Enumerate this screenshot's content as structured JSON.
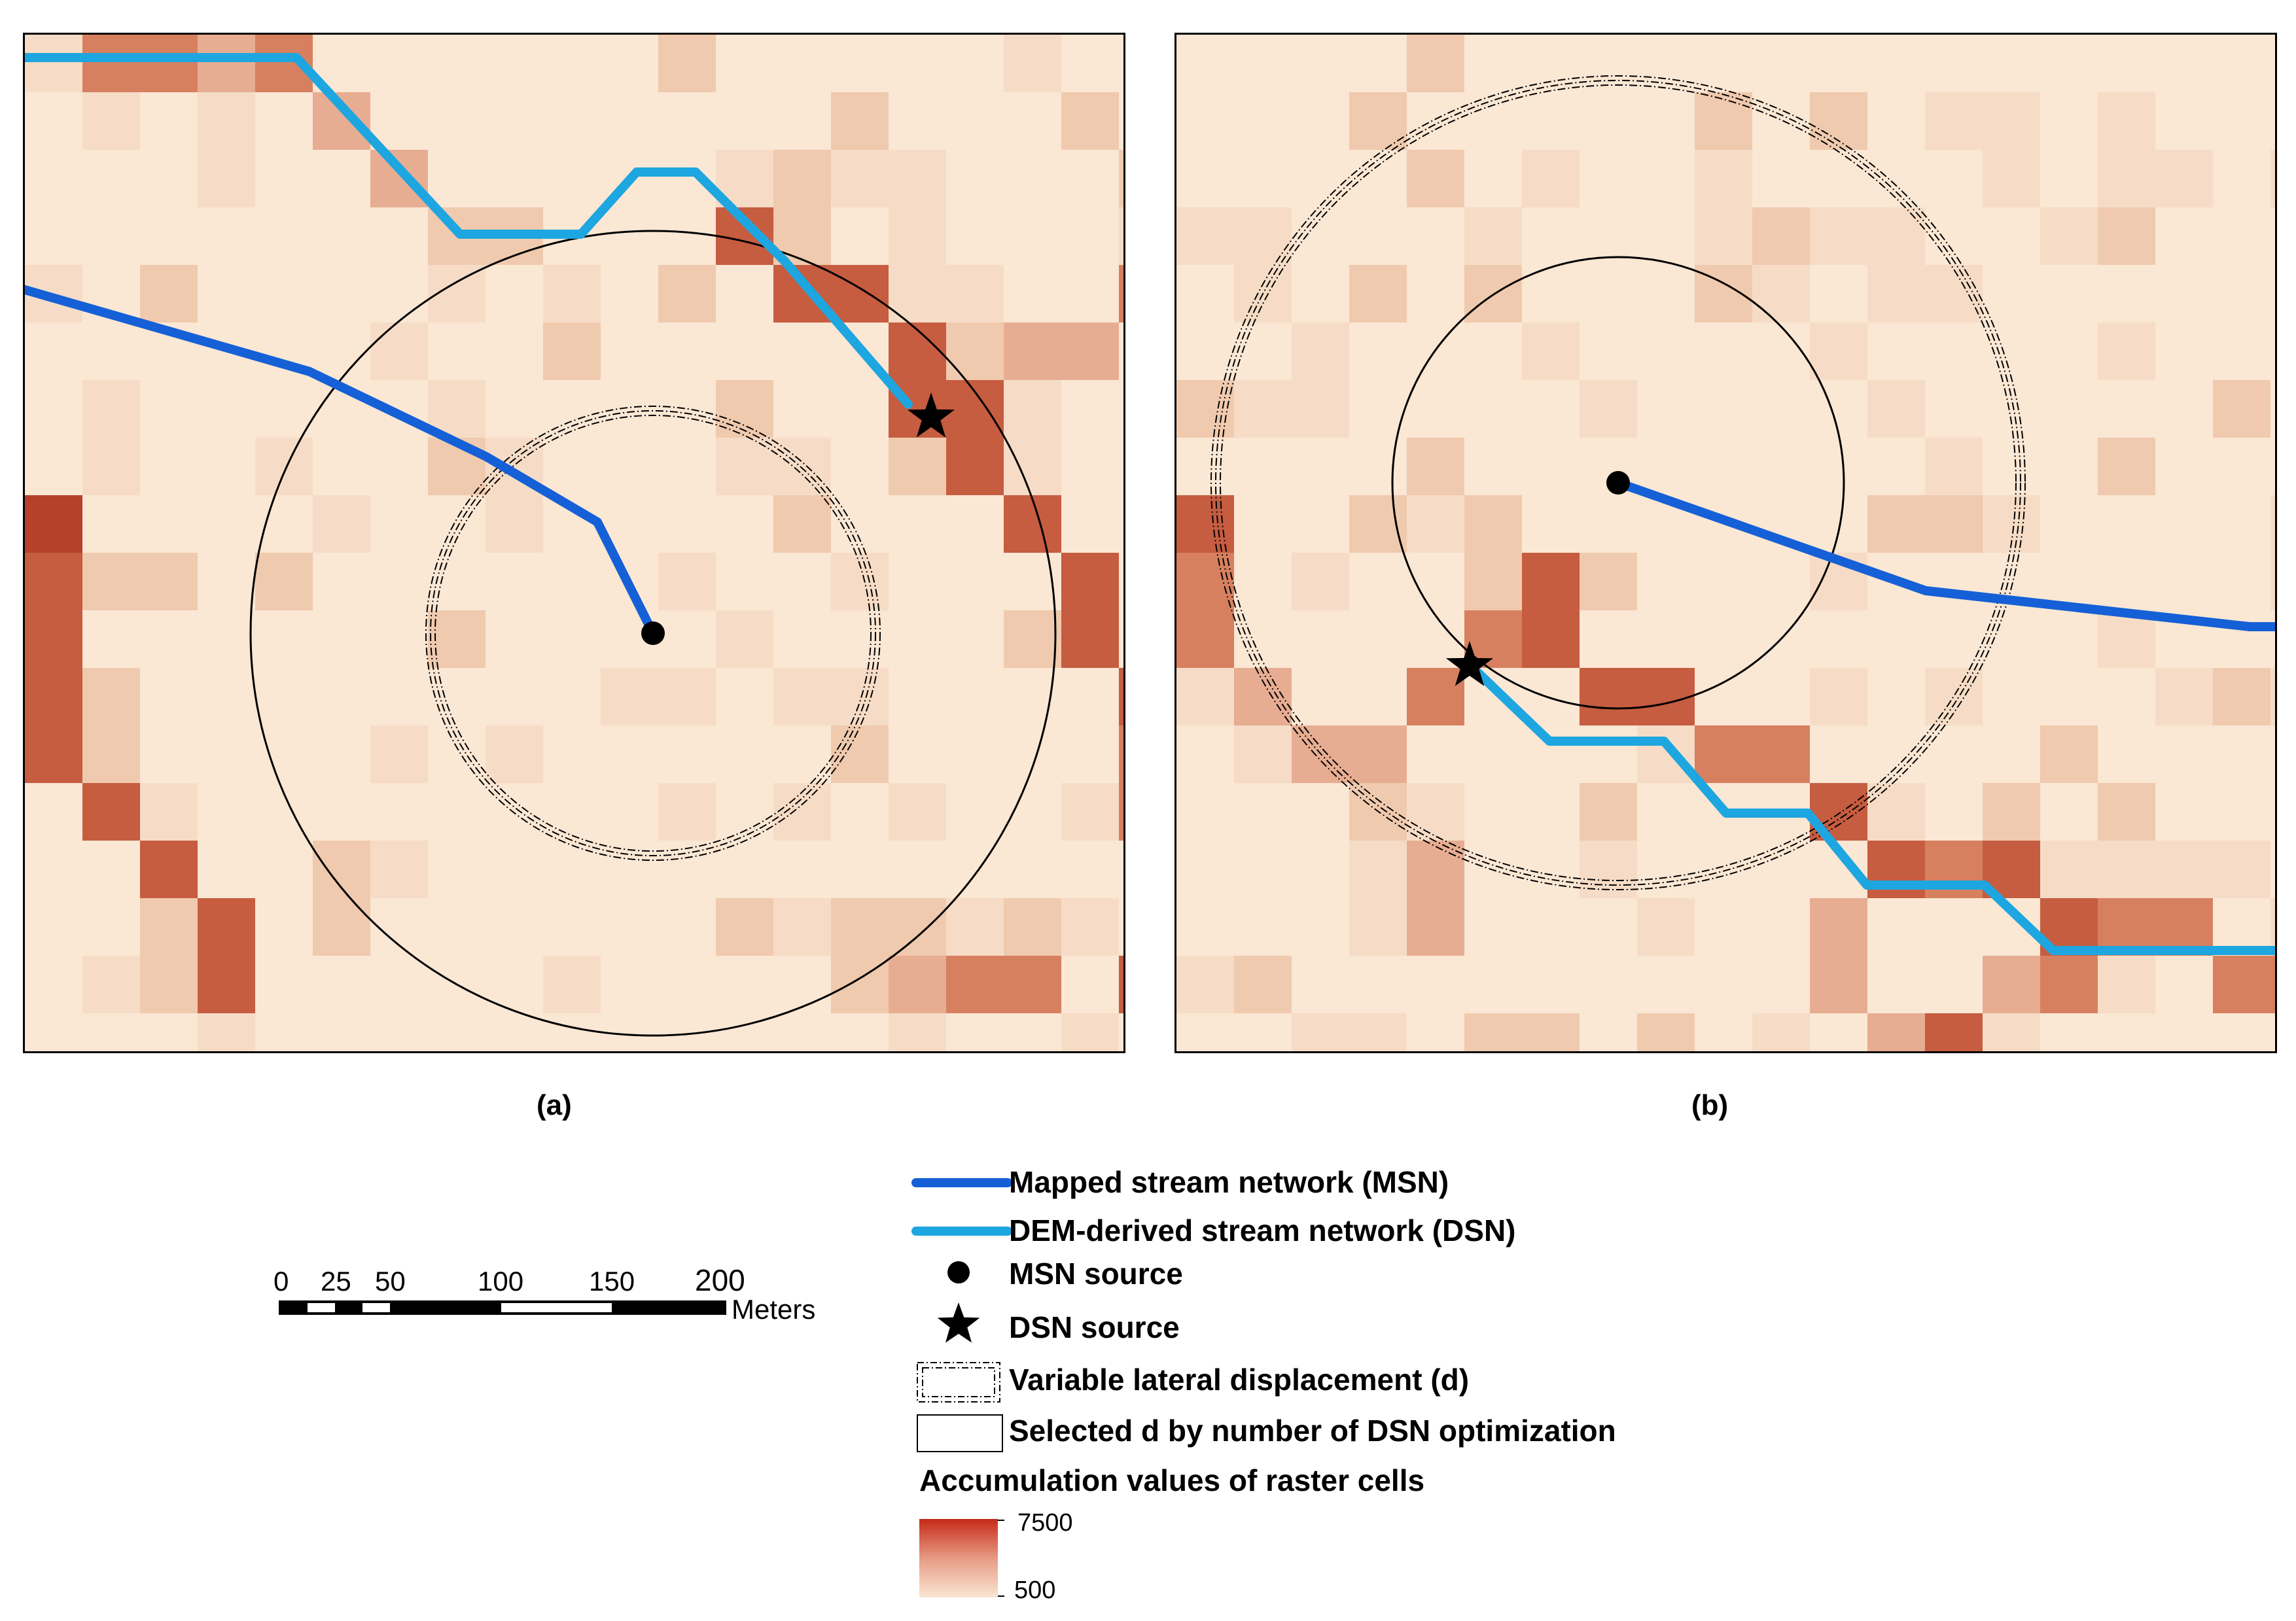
{
  "panels": [
    {
      "caption": "(a)"
    },
    {
      "caption": "(b)"
    }
  ],
  "legend": {
    "items": [
      {
        "symbol": "dark-blue-line",
        "label": "Mapped stream network (MSN)"
      },
      {
        "symbol": "light-blue-line",
        "label": "DEM-derived stream network (DSN)"
      },
      {
        "symbol": "black-dot",
        "label": "MSN source"
      },
      {
        "symbol": "black-star",
        "label": "DSN source"
      },
      {
        "symbol": "dashed-box",
        "label": "Variable lateral displacement (d)"
      },
      {
        "symbol": "solid-box",
        "label": "Selected d by number of DSN optimization"
      }
    ],
    "ramp_title": "Accumulation values of raster cells",
    "ramp_max": "7500",
    "ramp_min": "500"
  },
  "scale_bar": {
    "ticks": [
      "0",
      "25",
      "50",
      "100",
      "150",
      "200"
    ],
    "unit": "Meters"
  },
  "colors": {
    "msn": "#1560d6",
    "dsn": "#1ea6e0",
    "ramp_low": "#f9e6d3",
    "ramp_high": "#c62a18"
  }
}
